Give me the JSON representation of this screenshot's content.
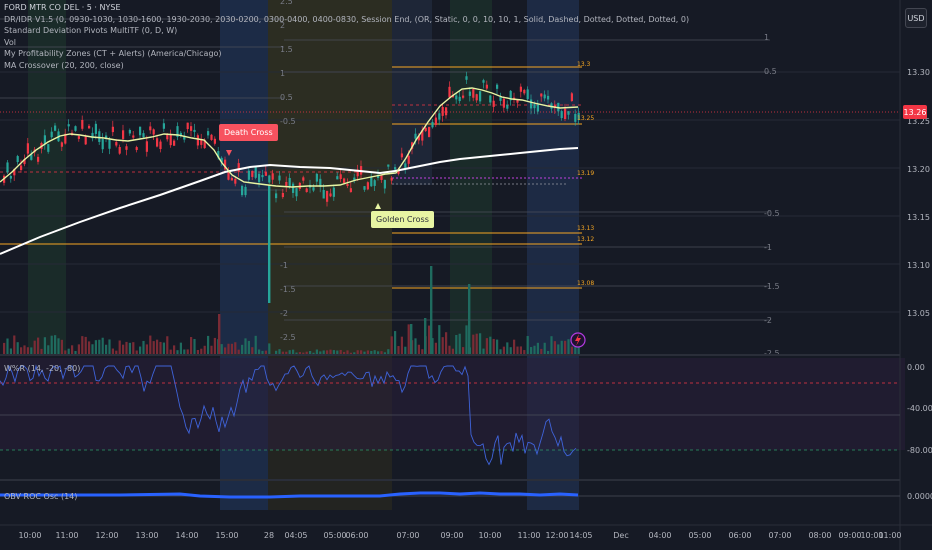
{
  "legend": {
    "symbol": "FORD MTR CO DEL · 5 · NYSE",
    "indicators": [
      "DR/IDR V1.5 (0, 0930-1030, 1030-1600, 1930-2030, 2030-0200, 0300-0400, 0400-0830, Session End, (OR, Static, 0, 0, 10, 10, 1, Solid, Dashed, Dotted, Dotted, Dotted, 0)",
      "Standard Deviation Pivots MultiTF (0, D, W)",
      "Vol",
      "My Profitability Zones (CT + Alerts) (America/Chicago)",
      "MA Crossover (20, 200, close)"
    ]
  },
  "currency": "USD",
  "last_price": "13.26",
  "signals": {
    "death_cross": "Death Cross",
    "golden_cross": "Golden Cross"
  },
  "price_axis": [
    "13.30",
    "13.25",
    "13.20",
    "13.15",
    "13.10",
    "13.05"
  ],
  "zone_labels_mid": [
    "2.5",
    "2",
    "1.5",
    "1",
    "0.5",
    "-0.5",
    "-1",
    "-1.5",
    "-2",
    "-2.5"
  ],
  "zone_labels_right": [
    "1",
    "0.5",
    "-0.5",
    "-1",
    "-1.5",
    "-2",
    "-2.5"
  ],
  "level_labels": [
    "13.3",
    "13.25",
    "13.19",
    "13.13",
    "13.12",
    "13.08"
  ],
  "wr_pane": {
    "label": "W%R (14, -20, -80)",
    "axis": [
      "0.00",
      "-40.00",
      "-80.00"
    ]
  },
  "obv_pane": {
    "label": "OBV ROC Osc (14)",
    "axis": [
      "0.0000"
    ]
  },
  "time_axis": [
    "10:00",
    "11:00",
    "12:00",
    "13:00",
    "14:00",
    "15:00",
    "28",
    "04:05",
    "05:00",
    "06:00",
    "07:00",
    "09:00",
    "10:00",
    "11:00",
    "12:00",
    "14:05",
    "Dec",
    "04:00",
    "05:00",
    "06:00",
    "07:00",
    "08:00",
    "09:00",
    "10:00",
    "11:00"
  ],
  "colors": {
    "up": "#26a69a",
    "down": "#f23645",
    "ma_fast": "#e8f5a3",
    "ma_slow": "#ffffff",
    "level": "#f5a623",
    "wr_line": "#3f63d9",
    "obv_line": "#2962ff"
  }
}
